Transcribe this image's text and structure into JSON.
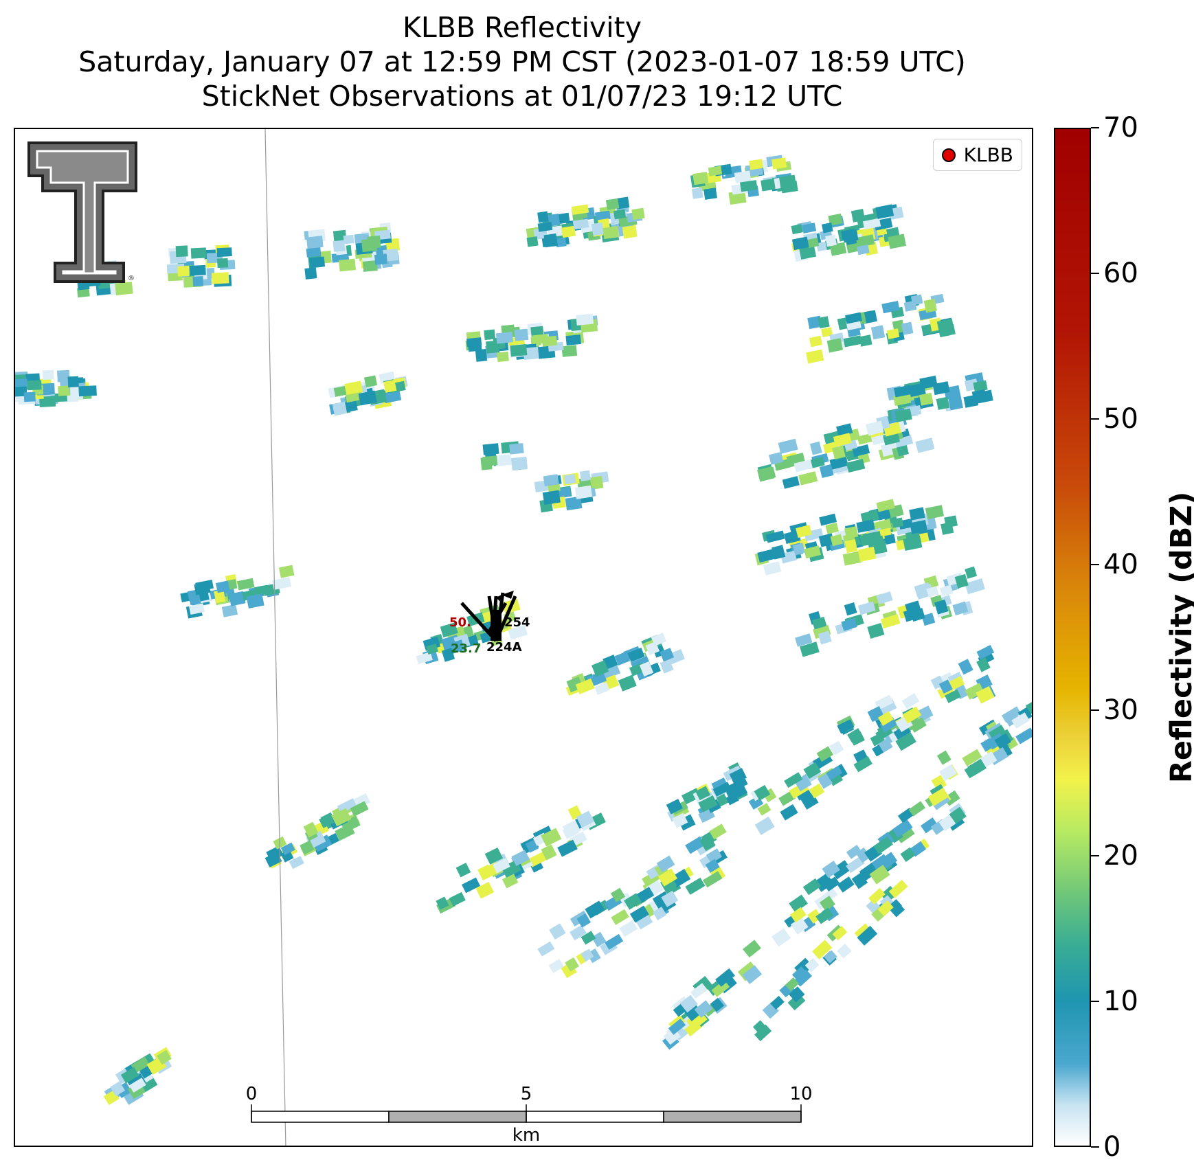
{
  "title": {
    "line1": "KLBB Reflectivity",
    "line2": "Saturday, January 07 at 12:59 PM CST (2023-01-07 18:59 UTC)",
    "line3": "StickNet Observations at 01/07/23 19:12 UTC"
  },
  "legend": {
    "label": "KLBB",
    "marker_color": "#e00000"
  },
  "colorbar": {
    "label": "Reflectivity (dBZ)",
    "min": 0,
    "max": 70,
    "ticks": [
      "0",
      "10",
      "20",
      "30",
      "40",
      "50",
      "60",
      "70"
    ]
  },
  "scale_bar": {
    "labels": [
      "0",
      "5",
      "10"
    ],
    "unit": "km"
  },
  "stations": [
    {
      "id": "254",
      "value": "50.",
      "value_color": "#b00000"
    },
    {
      "id": "224A",
      "value": "23.7",
      "value_color": "#1a6b1a"
    }
  ],
  "logo": {
    "name": "Texas Tech Double T",
    "text": "T"
  }
}
